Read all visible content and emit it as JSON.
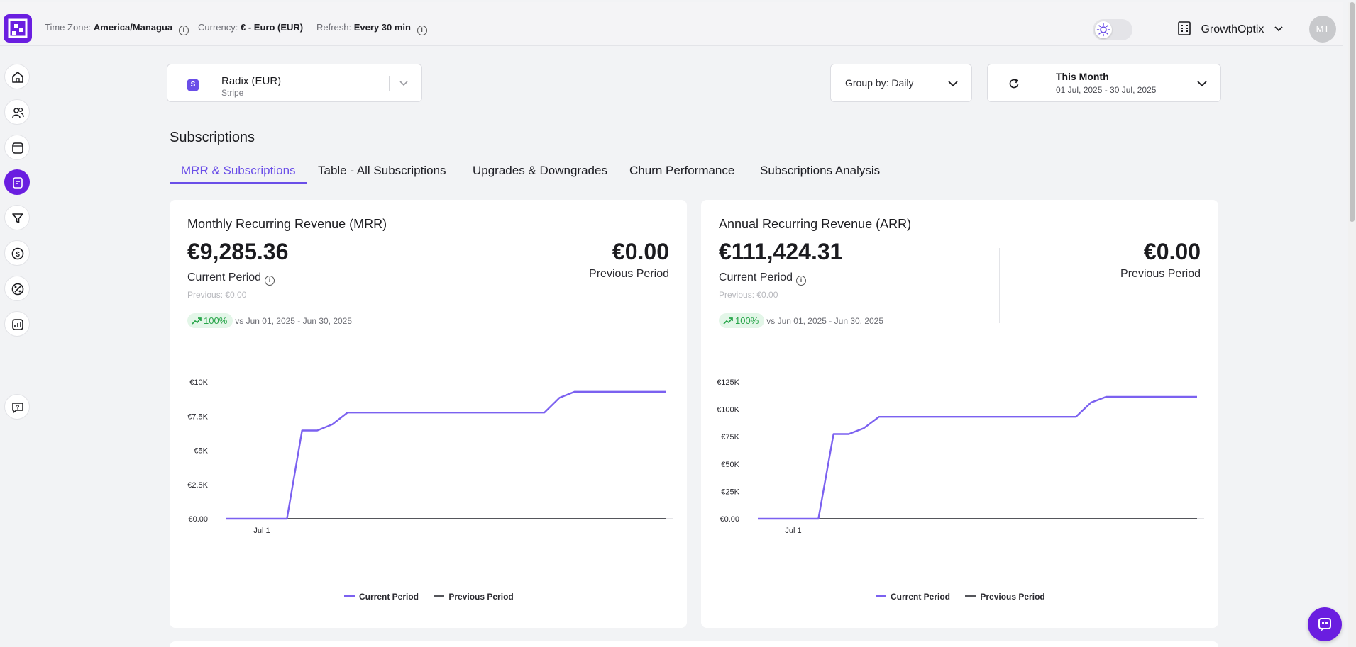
{
  "header": {
    "timezone_label": "Time Zone:",
    "timezone_value": "America/Managua",
    "currency_label": "Currency:",
    "currency_value": "€ - Euro (EUR)",
    "refresh_label": "Refresh:",
    "refresh_value": "Every 30 min",
    "org_name": "GrowthOptix",
    "avatar_initials": "MT"
  },
  "source": {
    "badge": "S",
    "name": "Radix (EUR)",
    "provider": "Stripe"
  },
  "group_by": "Group by: Daily",
  "date_range": {
    "label": "This Month",
    "range": "01 Jul, 2025 - 30 Jul, 2025"
  },
  "section_title": "Subscriptions",
  "tabs": [
    {
      "label": "MRR & Subscriptions"
    },
    {
      "label": "Table - All Subscriptions"
    },
    {
      "label": "Upgrades & Downgrades"
    },
    {
      "label": "Churn Performance"
    },
    {
      "label": "Subscriptions Analysis"
    }
  ],
  "colors": {
    "accent": "#6a4ee8",
    "brand": "#6a1ee0",
    "current_series": "#7b61f0",
    "previous_series": "#55565b",
    "positive": "#27a549"
  },
  "sidebar_icons": [
    "home-icon",
    "users-icon",
    "box-icon",
    "subscriptions-icon",
    "funnel-icon",
    "dollar-icon",
    "discount-icon",
    "analytics-icon",
    "help-chat-icon"
  ],
  "panels": [
    {
      "title": "Monthly Recurring Revenue (MRR)",
      "current_value": "€9,285.36",
      "current_label": "Current Period",
      "previous_note": "Previous: €0.00",
      "previous_value": "€0.00",
      "previous_label": "Previous Period",
      "trend_pct": "100%",
      "trend_note": "vs Jun 01, 2025 - Jun 30, 2025",
      "legend_current": "Current Period",
      "legend_previous": "Previous Period"
    },
    {
      "title": "Annual Recurring Revenue (ARR)",
      "current_value": "€111,424.31",
      "current_label": "Current Period",
      "previous_note": "Previous: €0.00",
      "previous_value": "€0.00",
      "previous_label": "Previous Period",
      "trend_pct": "100%",
      "trend_note": "vs Jun 01, 2025 - Jun 30, 2025",
      "legend_current": "Current Period",
      "legend_previous": "Previous Period"
    }
  ],
  "chart_data": [
    {
      "type": "line",
      "x_tick_labels": [
        "Jul 1"
      ],
      "y_tick_labels": [
        "€0.00",
        "€2.5K",
        "€5K",
        "€7.5K",
        "€10K"
      ],
      "ylim": [
        0,
        10000
      ],
      "x": [
        1,
        2,
        3,
        4,
        5,
        6,
        7,
        8,
        9,
        10,
        11,
        12,
        13,
        14,
        15,
        16,
        17,
        18,
        19,
        20,
        21,
        22,
        23,
        24,
        25,
        26,
        27,
        28,
        29,
        30
      ],
      "series": [
        {
          "name": "Current Period",
          "values": [
            0,
            0,
            0,
            0,
            0,
            6450,
            6450,
            6900,
            7760,
            7760,
            7760,
            7760,
            7760,
            7760,
            7760,
            7760,
            7760,
            7760,
            7760,
            7760,
            7760,
            7760,
            8850,
            9285,
            9285,
            9285,
            9285,
            9285,
            9285,
            9285
          ]
        },
        {
          "name": "Previous Period",
          "values": [
            0,
            0,
            0,
            0,
            0,
            0,
            0,
            0,
            0,
            0,
            0,
            0,
            0,
            0,
            0,
            0,
            0,
            0,
            0,
            0,
            0,
            0,
            0,
            0,
            0,
            0,
            0,
            0,
            0,
            0
          ]
        }
      ],
      "legend": "bottom-center",
      "grid": false
    },
    {
      "type": "line",
      "x_tick_labels": [
        "Jul 1"
      ],
      "y_tick_labels": [
        "€0.00",
        "€25K",
        "€50K",
        "€75K",
        "€100K",
        "€125K"
      ],
      "ylim": [
        0,
        125000
      ],
      "x": [
        1,
        2,
        3,
        4,
        5,
        6,
        7,
        8,
        9,
        10,
        11,
        12,
        13,
        14,
        15,
        16,
        17,
        18,
        19,
        20,
        21,
        22,
        23,
        24,
        25,
        26,
        27,
        28,
        29,
        30
      ],
      "series": [
        {
          "name": "Current Period",
          "values": [
            0,
            0,
            0,
            0,
            0,
            77400,
            77400,
            82800,
            93120,
            93120,
            93120,
            93120,
            93120,
            93120,
            93120,
            93120,
            93120,
            93120,
            93120,
            93120,
            93120,
            93120,
            106200,
            111424,
            111424,
            111424,
            111424,
            111424,
            111424,
            111424
          ]
        },
        {
          "name": "Previous Period",
          "values": [
            0,
            0,
            0,
            0,
            0,
            0,
            0,
            0,
            0,
            0,
            0,
            0,
            0,
            0,
            0,
            0,
            0,
            0,
            0,
            0,
            0,
            0,
            0,
            0,
            0,
            0,
            0,
            0,
            0,
            0
          ]
        }
      ],
      "legend": "bottom-center",
      "grid": false
    }
  ]
}
